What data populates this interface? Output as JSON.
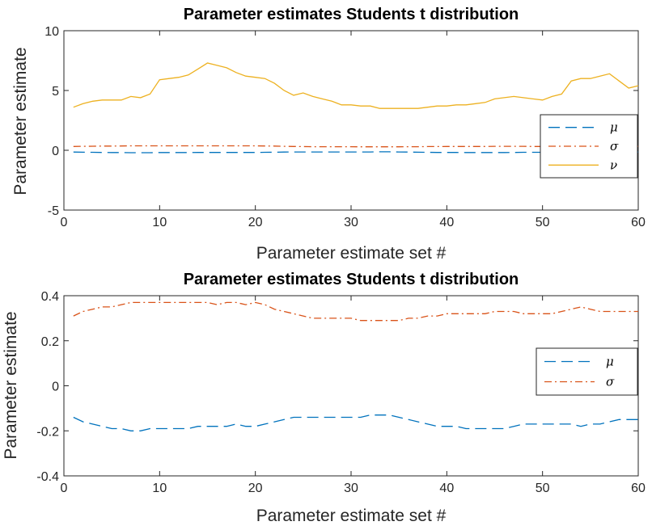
{
  "chart_data": [
    {
      "type": "line",
      "title": "Parameter estimates Students t distribution",
      "xlabel": "Parameter estimate set #",
      "ylabel": "Parameter estimate",
      "xlim": [
        0,
        60
      ],
      "ylim": [
        -5,
        10
      ],
      "xticks": [
        "0",
        "10",
        "20",
        "30",
        "40",
        "50",
        "60"
      ],
      "yticks": [
        "-5",
        "0",
        "5",
        "10"
      ],
      "xtick_values": [
        0,
        10,
        20,
        30,
        40,
        50,
        60
      ],
      "ytick_values": [
        -5,
        0,
        5,
        10
      ],
      "grid": false,
      "legend_position": "right",
      "x": [
        1,
        2,
        3,
        4,
        5,
        6,
        7,
        8,
        9,
        10,
        11,
        12,
        13,
        14,
        15,
        16,
        17,
        18,
        19,
        20,
        21,
        22,
        23,
        24,
        25,
        26,
        27,
        28,
        29,
        30,
        31,
        32,
        33,
        34,
        35,
        36,
        37,
        38,
        39,
        40,
        41,
        42,
        43,
        44,
        45,
        46,
        47,
        48,
        49,
        50,
        51,
        52,
        53,
        54,
        55,
        56,
        57,
        58,
        59,
        60
      ],
      "series": [
        {
          "name": "μ",
          "color": "#0072bd",
          "style": "dashed",
          "values": [
            -0.15,
            -0.16,
            -0.17,
            -0.18,
            -0.19,
            -0.19,
            -0.2,
            -0.2,
            -0.2,
            -0.19,
            -0.19,
            -0.19,
            -0.19,
            -0.18,
            -0.18,
            -0.18,
            -0.18,
            -0.18,
            -0.18,
            -0.18,
            -0.17,
            -0.16,
            -0.15,
            -0.14,
            -0.14,
            -0.14,
            -0.14,
            -0.14,
            -0.14,
            -0.14,
            -0.14,
            -0.14,
            -0.13,
            -0.13,
            -0.14,
            -0.15,
            -0.16,
            -0.17,
            -0.18,
            -0.18,
            -0.18,
            -0.19,
            -0.19,
            -0.19,
            -0.19,
            -0.19,
            -0.18,
            -0.17,
            -0.17,
            -0.17,
            -0.17,
            -0.17,
            -0.18,
            -0.18,
            -0.17,
            -0.17,
            -0.16,
            -0.15,
            -0.15,
            -0.15
          ]
        },
        {
          "name": "σ",
          "color": "#d95319",
          "style": "dashdot",
          "values": [
            0.32,
            0.33,
            0.34,
            0.35,
            0.35,
            0.36,
            0.37,
            0.37,
            0.37,
            0.37,
            0.37,
            0.37,
            0.37,
            0.37,
            0.37,
            0.37,
            0.37,
            0.37,
            0.37,
            0.37,
            0.36,
            0.35,
            0.33,
            0.32,
            0.31,
            0.3,
            0.3,
            0.3,
            0.3,
            0.3,
            0.29,
            0.29,
            0.29,
            0.29,
            0.29,
            0.3,
            0.3,
            0.31,
            0.31,
            0.32,
            0.32,
            0.32,
            0.32,
            0.32,
            0.33,
            0.33,
            0.33,
            0.33,
            0.32,
            0.32,
            0.32,
            0.33,
            0.34,
            0.35,
            0.34,
            0.33,
            0.33,
            0.33,
            0.33,
            0.33
          ]
        },
        {
          "name": "ν",
          "color": "#edb120",
          "style": "solid",
          "values": [
            3.6,
            3.9,
            4.1,
            4.2,
            4.2,
            4.2,
            4.5,
            4.4,
            4.7,
            5.9,
            6.0,
            6.1,
            6.3,
            6.8,
            7.3,
            7.1,
            6.9,
            6.5,
            6.2,
            6.1,
            6.0,
            5.6,
            5.0,
            4.6,
            4.8,
            4.5,
            4.3,
            4.1,
            3.8,
            3.8,
            3.7,
            3.7,
            3.5,
            3.5,
            3.5,
            3.5,
            3.5,
            3.6,
            3.7,
            3.7,
            3.8,
            3.8,
            3.9,
            4.0,
            4.3,
            4.4,
            4.5,
            4.4,
            4.3,
            4.2,
            4.5,
            4.7,
            5.8,
            6.0,
            6.0,
            6.2,
            6.4,
            5.8,
            5.2,
            5.4
          ]
        }
      ]
    },
    {
      "type": "line",
      "title": "Parameter estimates Students t distribution",
      "xlabel": "Parameter estimate set #",
      "ylabel": "Parameter estimate",
      "xlim": [
        0,
        60
      ],
      "ylim": [
        -0.4,
        0.4
      ],
      "xticks": [
        "0",
        "10",
        "20",
        "30",
        "40",
        "50",
        "60"
      ],
      "yticks": [
        "-0.4",
        "-0.2",
        "0",
        "0.2",
        "0.4"
      ],
      "xtick_values": [
        0,
        10,
        20,
        30,
        40,
        50,
        60
      ],
      "ytick_values": [
        -0.4,
        -0.2,
        0,
        0.2,
        0.4
      ],
      "grid": false,
      "legend_position": "right",
      "x": [
        1,
        2,
        3,
        4,
        5,
        6,
        7,
        8,
        9,
        10,
        11,
        12,
        13,
        14,
        15,
        16,
        17,
        18,
        19,
        20,
        21,
        22,
        23,
        24,
        25,
        26,
        27,
        28,
        29,
        30,
        31,
        32,
        33,
        34,
        35,
        36,
        37,
        38,
        39,
        40,
        41,
        42,
        43,
        44,
        45,
        46,
        47,
        48,
        49,
        50,
        51,
        52,
        53,
        54,
        55,
        56,
        57,
        58,
        59,
        60
      ],
      "series": [
        {
          "name": "μ",
          "color": "#0072bd",
          "style": "dashed",
          "values": [
            -0.14,
            -0.16,
            -0.17,
            -0.18,
            -0.19,
            -0.19,
            -0.2,
            -0.2,
            -0.19,
            -0.19,
            -0.19,
            -0.19,
            -0.19,
            -0.18,
            -0.18,
            -0.18,
            -0.18,
            -0.17,
            -0.18,
            -0.18,
            -0.17,
            -0.16,
            -0.15,
            -0.14,
            -0.14,
            -0.14,
            -0.14,
            -0.14,
            -0.14,
            -0.14,
            -0.14,
            -0.13,
            -0.13,
            -0.13,
            -0.14,
            -0.15,
            -0.16,
            -0.17,
            -0.18,
            -0.18,
            -0.18,
            -0.19,
            -0.19,
            -0.19,
            -0.19,
            -0.19,
            -0.18,
            -0.17,
            -0.17,
            -0.17,
            -0.17,
            -0.17,
            -0.17,
            -0.18,
            -0.17,
            -0.17,
            -0.16,
            -0.15,
            -0.15,
            -0.15
          ]
        },
        {
          "name": "σ",
          "color": "#d95319",
          "style": "dashdot",
          "values": [
            0.31,
            0.33,
            0.34,
            0.35,
            0.35,
            0.36,
            0.37,
            0.37,
            0.37,
            0.37,
            0.37,
            0.37,
            0.37,
            0.37,
            0.37,
            0.36,
            0.37,
            0.37,
            0.36,
            0.37,
            0.36,
            0.34,
            0.33,
            0.32,
            0.31,
            0.3,
            0.3,
            0.3,
            0.3,
            0.3,
            0.29,
            0.29,
            0.29,
            0.29,
            0.29,
            0.3,
            0.3,
            0.31,
            0.31,
            0.32,
            0.32,
            0.32,
            0.32,
            0.32,
            0.33,
            0.33,
            0.33,
            0.32,
            0.32,
            0.32,
            0.32,
            0.33,
            0.34,
            0.35,
            0.34,
            0.33,
            0.33,
            0.33,
            0.33,
            0.33
          ]
        }
      ]
    }
  ]
}
